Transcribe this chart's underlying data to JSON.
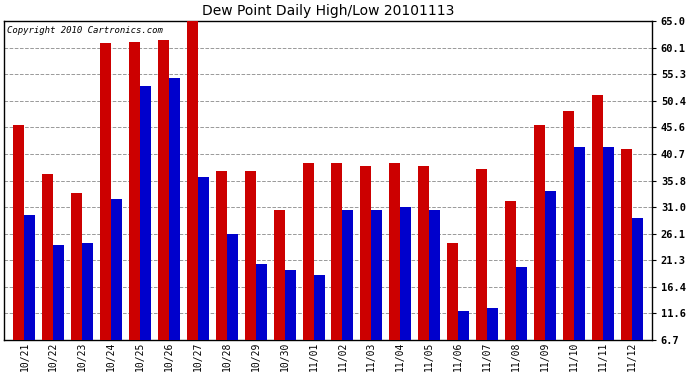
{
  "title": "Dew Point Daily High/Low 20101113",
  "copyright": "Copyright 2010 Cartronics.com",
  "dates": [
    "10/21",
    "10/22",
    "10/23",
    "10/24",
    "10/25",
    "10/26",
    "10/27",
    "10/28",
    "10/29",
    "10/30",
    "11/01",
    "11/02",
    "11/03",
    "11/04",
    "11/05",
    "11/06",
    "11/07",
    "11/08",
    "11/09",
    "11/10",
    "11/11",
    "11/12"
  ],
  "high": [
    46.0,
    37.0,
    33.5,
    61.0,
    61.2,
    61.5,
    65.0,
    37.5,
    37.5,
    30.5,
    39.0,
    39.0,
    38.5,
    39.0,
    38.5,
    24.5,
    38.0,
    32.0,
    46.0,
    48.5,
    51.5,
    41.5
  ],
  "low": [
    29.5,
    24.0,
    24.5,
    32.5,
    53.0,
    54.5,
    36.5,
    26.0,
    20.5,
    19.5,
    18.5,
    30.5,
    30.5,
    31.0,
    30.5,
    12.0,
    12.5,
    20.0,
    34.0,
    42.0,
    42.0,
    29.0
  ],
  "high_color": "#cc0000",
  "low_color": "#0000cc",
  "background_color": "#ffffff",
  "grid_color": "#999999",
  "yticks": [
    6.7,
    11.6,
    16.4,
    21.3,
    26.1,
    31.0,
    35.8,
    40.7,
    45.6,
    50.4,
    55.3,
    60.1,
    65.0
  ],
  "ylim": [
    6.7,
    65.0
  ],
  "ymin": 6.7,
  "bar_width": 0.38
}
